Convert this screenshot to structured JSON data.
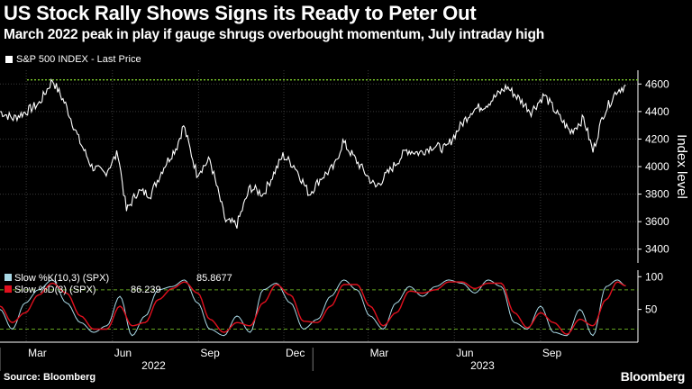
{
  "title": "US Stock Rally Shows Signs its Ready to Peter Out",
  "subtitle": "March 2022 peak in play if gauge shrugs overbought momentum, July intraday high",
  "legend_label": "S&P 500 INDEX - Last Price",
  "source": "Source: Bloomberg",
  "brand": "Bloomberg",
  "colors": {
    "background": "#000000",
    "price": "#ffffff",
    "slow_k": "#a9d9e6",
    "slow_d": "#e0101e",
    "reference_line": "#7ccc2a"
  },
  "chart_data": [
    {
      "type": "line",
      "series": [
        {
          "name": "S&P 500 INDEX - Last Price",
          "x": [
            "2022-02-01",
            "2022-02-15",
            "2022-03-01",
            "2022-03-15",
            "2022-03-29",
            "2022-04-12",
            "2022-04-26",
            "2022-05-10",
            "2022-05-24",
            "2022-06-07",
            "2022-06-16",
            "2022-06-28",
            "2022-07-12",
            "2022-07-26",
            "2022-08-09",
            "2022-08-16",
            "2022-08-30",
            "2022-09-13",
            "2022-09-30",
            "2022-10-12",
            "2022-10-26",
            "2022-11-09",
            "2022-11-30",
            "2022-12-13",
            "2022-12-28",
            "2023-01-10",
            "2023-01-24",
            "2023-02-02",
            "2023-02-21",
            "2023-03-09",
            "2023-03-23",
            "2023-04-11",
            "2023-04-25",
            "2023-05-09",
            "2023-05-23",
            "2023-06-06",
            "2023-06-20",
            "2023-07-05",
            "2023-07-27",
            "2023-08-08",
            "2023-08-22",
            "2023-09-05",
            "2023-09-19",
            "2023-10-03",
            "2023-10-17",
            "2023-10-27",
            "2023-11-07",
            "2023-11-21",
            "2023-12-01"
          ],
          "y": [
            4400,
            4350,
            4400,
            4460,
            4630,
            4450,
            4200,
            4000,
            3950,
            4100,
            3680,
            3820,
            3800,
            4000,
            4150,
            4300,
            3950,
            4050,
            3600,
            3580,
            3850,
            3800,
            4080,
            4000,
            3800,
            3920,
            4000,
            4180,
            4000,
            3850,
            3960,
            4120,
            4100,
            4150,
            4130,
            4280,
            4410,
            4450,
            4580,
            4500,
            4400,
            4520,
            4380,
            4250,
            4350,
            4110,
            4380,
            4550,
            4590
          ]
        }
      ],
      "reference_line": {
        "value": 4630
      },
      "xlabel": "",
      "ylabel": "Index level",
      "ylim": [
        3300,
        4700
      ],
      "y_ticks": [
        3400,
        3600,
        3800,
        4000,
        4200,
        4400,
        4600
      ],
      "x_tick_labels": [
        "Mar",
        "Jun",
        "Sep",
        "Dec",
        "Mar",
        "Jun",
        "Sep"
      ],
      "year_labels": [
        "2022",
        "2023"
      ],
      "grid": true
    },
    {
      "type": "line",
      "series": [
        {
          "name": "Slow %K(10,3) (SPX)",
          "last_value": 85.8677,
          "x": [
            "2022-02-01",
            "2022-02-14",
            "2022-02-28",
            "2022-03-14",
            "2022-03-29",
            "2022-04-13",
            "2022-04-28",
            "2022-05-12",
            "2022-05-26",
            "2022-06-09",
            "2022-06-22",
            "2022-07-06",
            "2022-07-20",
            "2022-08-04",
            "2022-08-17",
            "2022-08-31",
            "2022-09-13",
            "2022-09-28",
            "2022-10-12",
            "2022-10-26",
            "2022-11-09",
            "2022-11-23",
            "2022-12-08",
            "2022-12-22",
            "2023-01-06",
            "2023-01-20",
            "2023-02-03",
            "2023-02-17",
            "2023-03-03",
            "2023-03-17",
            "2023-03-31",
            "2023-04-14",
            "2023-04-28",
            "2023-05-12",
            "2023-05-26",
            "2023-06-09",
            "2023-06-23",
            "2023-07-07",
            "2023-07-21",
            "2023-08-04",
            "2023-08-18",
            "2023-09-01",
            "2023-09-15",
            "2023-09-29",
            "2023-10-13",
            "2023-10-27",
            "2023-11-10",
            "2023-11-22",
            "2023-12-01"
          ],
          "y": [
            50,
            20,
            60,
            80,
            95,
            60,
            30,
            15,
            25,
            70,
            10,
            40,
            80,
            85,
            95,
            60,
            20,
            10,
            40,
            15,
            80,
            90,
            60,
            20,
            35,
            70,
            95,
            80,
            40,
            20,
            60,
            85,
            70,
            85,
            95,
            90,
            75,
            95,
            85,
            30,
            20,
            55,
            15,
            10,
            50,
            10,
            85,
            95,
            86
          ]
        },
        {
          "name": "Slow %D(3) (SPX)",
          "last_value": 86.239,
          "x": [
            "2022-02-01",
            "2022-02-14",
            "2022-02-28",
            "2022-03-14",
            "2022-03-29",
            "2022-04-13",
            "2022-04-28",
            "2022-05-12",
            "2022-05-26",
            "2022-06-09",
            "2022-06-22",
            "2022-07-06",
            "2022-07-20",
            "2022-08-04",
            "2022-08-17",
            "2022-08-31",
            "2022-09-13",
            "2022-09-28",
            "2022-10-12",
            "2022-10-26",
            "2022-11-09",
            "2022-11-23",
            "2022-12-08",
            "2022-12-22",
            "2023-01-06",
            "2023-01-20",
            "2023-02-03",
            "2023-02-17",
            "2023-03-03",
            "2023-03-17",
            "2023-03-31",
            "2023-04-14",
            "2023-04-28",
            "2023-05-12",
            "2023-05-26",
            "2023-06-09",
            "2023-06-23",
            "2023-07-07",
            "2023-07-21",
            "2023-08-04",
            "2023-08-18",
            "2023-09-01",
            "2023-09-15",
            "2023-09-29",
            "2023-10-13",
            "2023-10-27",
            "2023-11-10",
            "2023-11-22",
            "2023-12-01"
          ],
          "y": [
            55,
            30,
            45,
            72,
            90,
            75,
            40,
            20,
            20,
            55,
            25,
            30,
            65,
            82,
            92,
            75,
            35,
            15,
            30,
            25,
            60,
            88,
            72,
            32,
            30,
            55,
            88,
            88,
            55,
            25,
            45,
            78,
            75,
            80,
            92,
            92,
            82,
            90,
            90,
            45,
            22,
            45,
            30,
            12,
            35,
            25,
            65,
            92,
            86
          ]
        }
      ],
      "levels": [
        20,
        80
      ],
      "ylim": [
        0,
        110
      ],
      "y_ticks": [
        50,
        100
      ]
    }
  ]
}
